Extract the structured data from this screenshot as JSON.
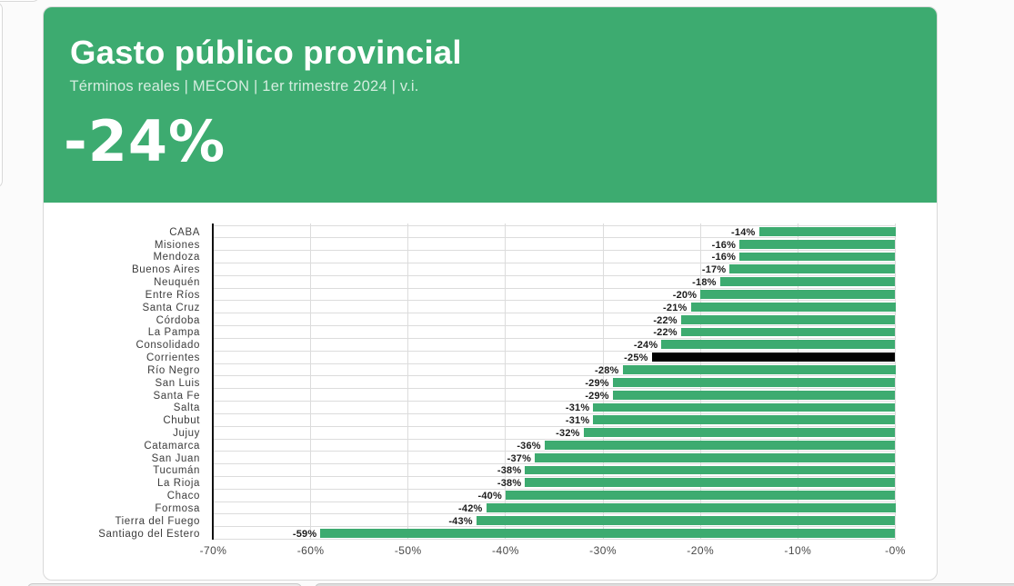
{
  "chart_data": {
    "type": "bar",
    "orientation": "horizontal",
    "title": "Gasto público provincial",
    "subtitle": "Términos reales | MECON | 1er trimestre 2024 | v.i.",
    "headline_value": "-24%",
    "categories": [
      "CABA",
      "Misiones",
      "Mendoza",
      "Buenos Aires",
      "Neuquén",
      "Entre Ríos",
      "Santa Cruz",
      "Córdoba",
      "La Pampa",
      "Consolidado",
      "Corrientes",
      "Río Negro",
      "San Luis",
      "Santa Fe",
      "Salta",
      "Chubut",
      "Jujuy",
      "Catamarca",
      "San Juan",
      "Tucumán",
      "La Rioja",
      "Chaco",
      "Formosa",
      "Tierra del Fuego",
      "Santiago del Estero"
    ],
    "values": [
      -14,
      -16,
      -16,
      -17,
      -18,
      -20,
      -21,
      -22,
      -22,
      -24,
      -25,
      -28,
      -29,
      -29,
      -31,
      -31,
      -32,
      -36,
      -37,
      -38,
      -38,
      -40,
      -42,
      -43,
      -59
    ],
    "bar_labels": [
      "-14%",
      "-16%",
      "-16%",
      "-17%",
      "-18%",
      "-20%",
      "-21%",
      "-22%",
      "-22%",
      "-24%",
      "-25%",
      "-28%",
      "-29%",
      "-29%",
      "-31%",
      "-31%",
      "-32%",
      "-36%",
      "-37%",
      "-38%",
      "-38%",
      "-40%",
      "-42%",
      "-43%",
      "-59%"
    ],
    "highlight_category": "Corrientes",
    "highlight_index": 10,
    "x_tick_labels": [
      "-70%",
      "-60%",
      "-50%",
      "-40%",
      "-30%",
      "-20%",
      "-10%",
      "-0%"
    ],
    "x_tick_values": [
      -70,
      -60,
      -50,
      -40,
      -30,
      -20,
      -10,
      0
    ],
    "xlim": [
      -70,
      0
    ],
    "grid": true,
    "legend": "none",
    "colors": {
      "bar": "#3dab70",
      "highlight_bar": "#000000",
      "header_background": "#3dab70",
      "title_text": "#ffffff",
      "grid_line": "#dcdcdc",
      "axis_line": "#111111"
    }
  }
}
